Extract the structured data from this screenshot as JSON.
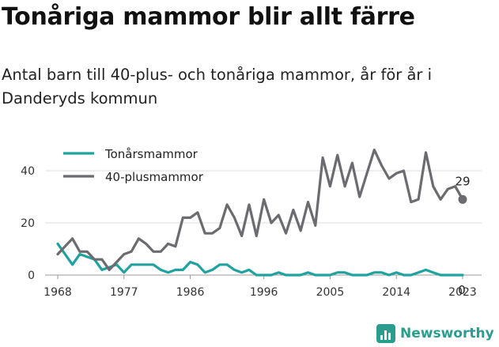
{
  "title": "Tonåriga mammor blir allt färre",
  "subtitle": "Antal barn till 40-plus- och tonåriga mammor, år för år i Danderyds kommun",
  "brand": {
    "name": "Newsworthy",
    "icon": "newsworthy-logo-icon",
    "color": "#2a9d8f"
  },
  "chart_data": {
    "type": "line",
    "title": "Tonåriga mammor blir allt färre",
    "subtitle": "Antal barn till 40-plus- och tonåriga mammor, år för år i Danderyds kommun",
    "xlabel": "",
    "ylabel": "",
    "xlim": [
      1968,
      2023
    ],
    "ylim": [
      0,
      50
    ],
    "x_ticks": [
      "1968",
      "1977",
      "1986",
      "1996",
      "2005",
      "2014",
      "2023"
    ],
    "y_ticks": [
      "0",
      "20",
      "40"
    ],
    "grid": true,
    "legend_position": "top-left",
    "series": [
      {
        "name": "Tonårsmammor",
        "color": "#20a39e",
        "x": [
          1968,
          1969,
          1970,
          1971,
          1972,
          1973,
          1974,
          1975,
          1976,
          1977,
          1978,
          1979,
          1980,
          1981,
          1982,
          1983,
          1984,
          1985,
          1986,
          1987,
          1988,
          1989,
          1990,
          1991,
          1992,
          1993,
          1994,
          1995,
          1996,
          1997,
          1998,
          1999,
          2000,
          2001,
          2002,
          2003,
          2004,
          2005,
          2006,
          2007,
          2008,
          2009,
          2010,
          2011,
          2012,
          2013,
          2014,
          2015,
          2016,
          2017,
          2018,
          2019,
          2020,
          2021,
          2022,
          2023
        ],
        "values": [
          12,
          8,
          4,
          8,
          7,
          6,
          2,
          3,
          4,
          1,
          4,
          4,
          4,
          4,
          2,
          1,
          2,
          2,
          5,
          4,
          1,
          2,
          4,
          4,
          2,
          1,
          2,
          0,
          0,
          0,
          1,
          0,
          0,
          0,
          1,
          0,
          0,
          0,
          1,
          1,
          0,
          0,
          0,
          1,
          1,
          0,
          1,
          0,
          0,
          1,
          2,
          1,
          0,
          0,
          0,
          0
        ]
      },
      {
        "name": "40-plusmammor",
        "color": "#6b6b70",
        "x": [
          1968,
          1969,
          1970,
          1971,
          1972,
          1973,
          1974,
          1975,
          1976,
          1977,
          1978,
          1979,
          1980,
          1981,
          1982,
          1983,
          1984,
          1985,
          1986,
          1987,
          1988,
          1989,
          1990,
          1991,
          1992,
          1993,
          1994,
          1995,
          1996,
          1997,
          1998,
          1999,
          2000,
          2001,
          2002,
          2003,
          2004,
          2005,
          2006,
          2007,
          2008,
          2009,
          2010,
          2011,
          2012,
          2013,
          2014,
          2015,
          2016,
          2017,
          2018,
          2019,
          2020,
          2021,
          2022,
          2023
        ],
        "values": [
          8,
          11,
          14,
          9,
          9,
          6,
          6,
          2,
          5,
          8,
          9,
          14,
          12,
          9,
          9,
          12,
          11,
          22,
          22,
          24,
          16,
          16,
          18,
          27,
          22,
          15,
          27,
          15,
          29,
          20,
          23,
          16,
          25,
          17,
          28,
          19,
          45,
          34,
          46,
          34,
          43,
          30,
          39,
          48,
          42,
          37,
          39,
          40,
          28,
          29,
          47,
          34,
          29,
          33,
          34,
          29
        ]
      }
    ],
    "end_labels": [
      {
        "series": "40-plusmammor",
        "x": 2023,
        "value": 29,
        "text": "29"
      },
      {
        "series": "Tonårsmammor",
        "x": 2023,
        "value": 0,
        "text": "0"
      }
    ]
  }
}
